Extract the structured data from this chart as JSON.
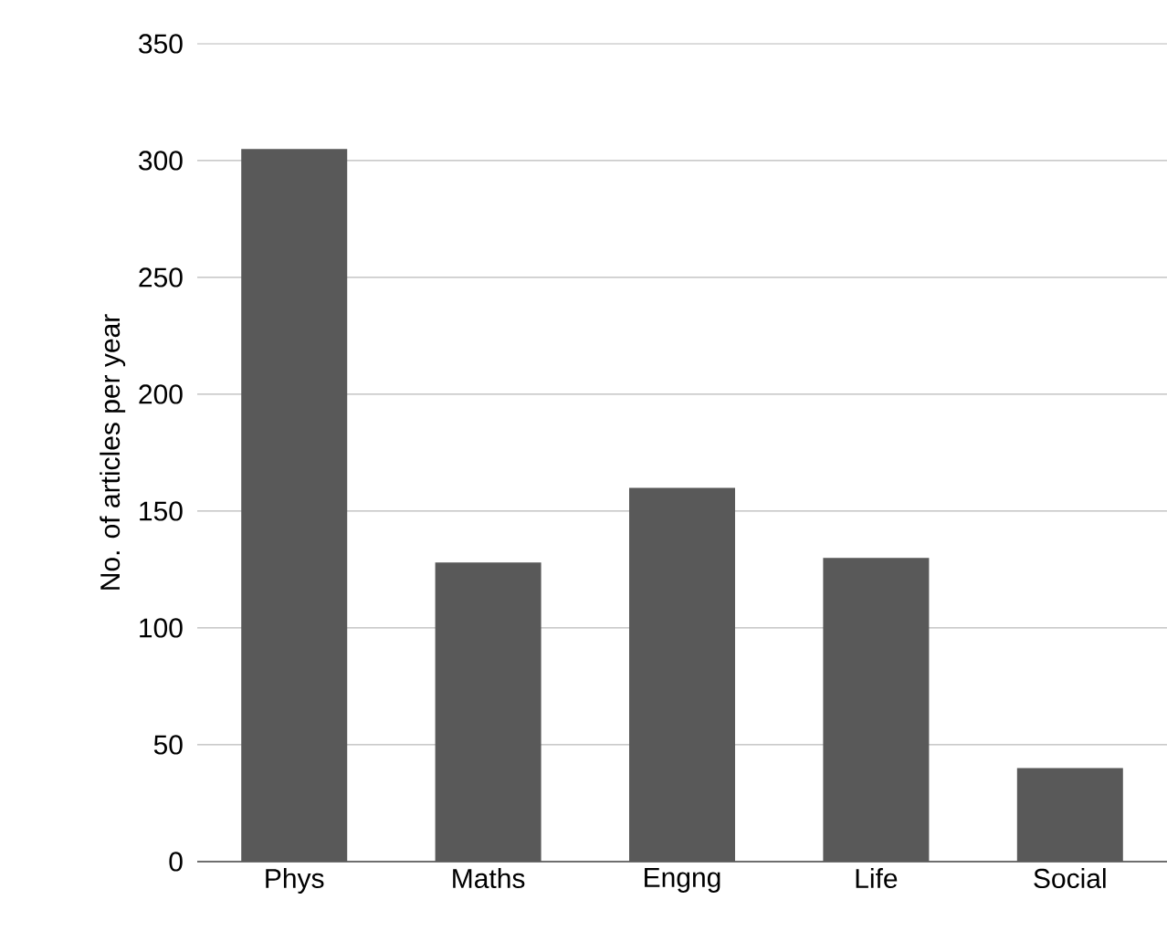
{
  "chart_data": {
    "type": "bar",
    "ylabel": "No. of articles per year",
    "categories": [
      "Phys",
      "Maths",
      "Engng",
      "Life",
      "Social"
    ],
    "values": [
      305,
      128,
      160,
      130,
      40
    ],
    "color": "#595959",
    "ylim": [
      0,
      350
    ],
    "yticks": [
      0,
      50,
      100,
      150,
      200,
      250,
      300,
      350
    ],
    "grid": "y"
  }
}
